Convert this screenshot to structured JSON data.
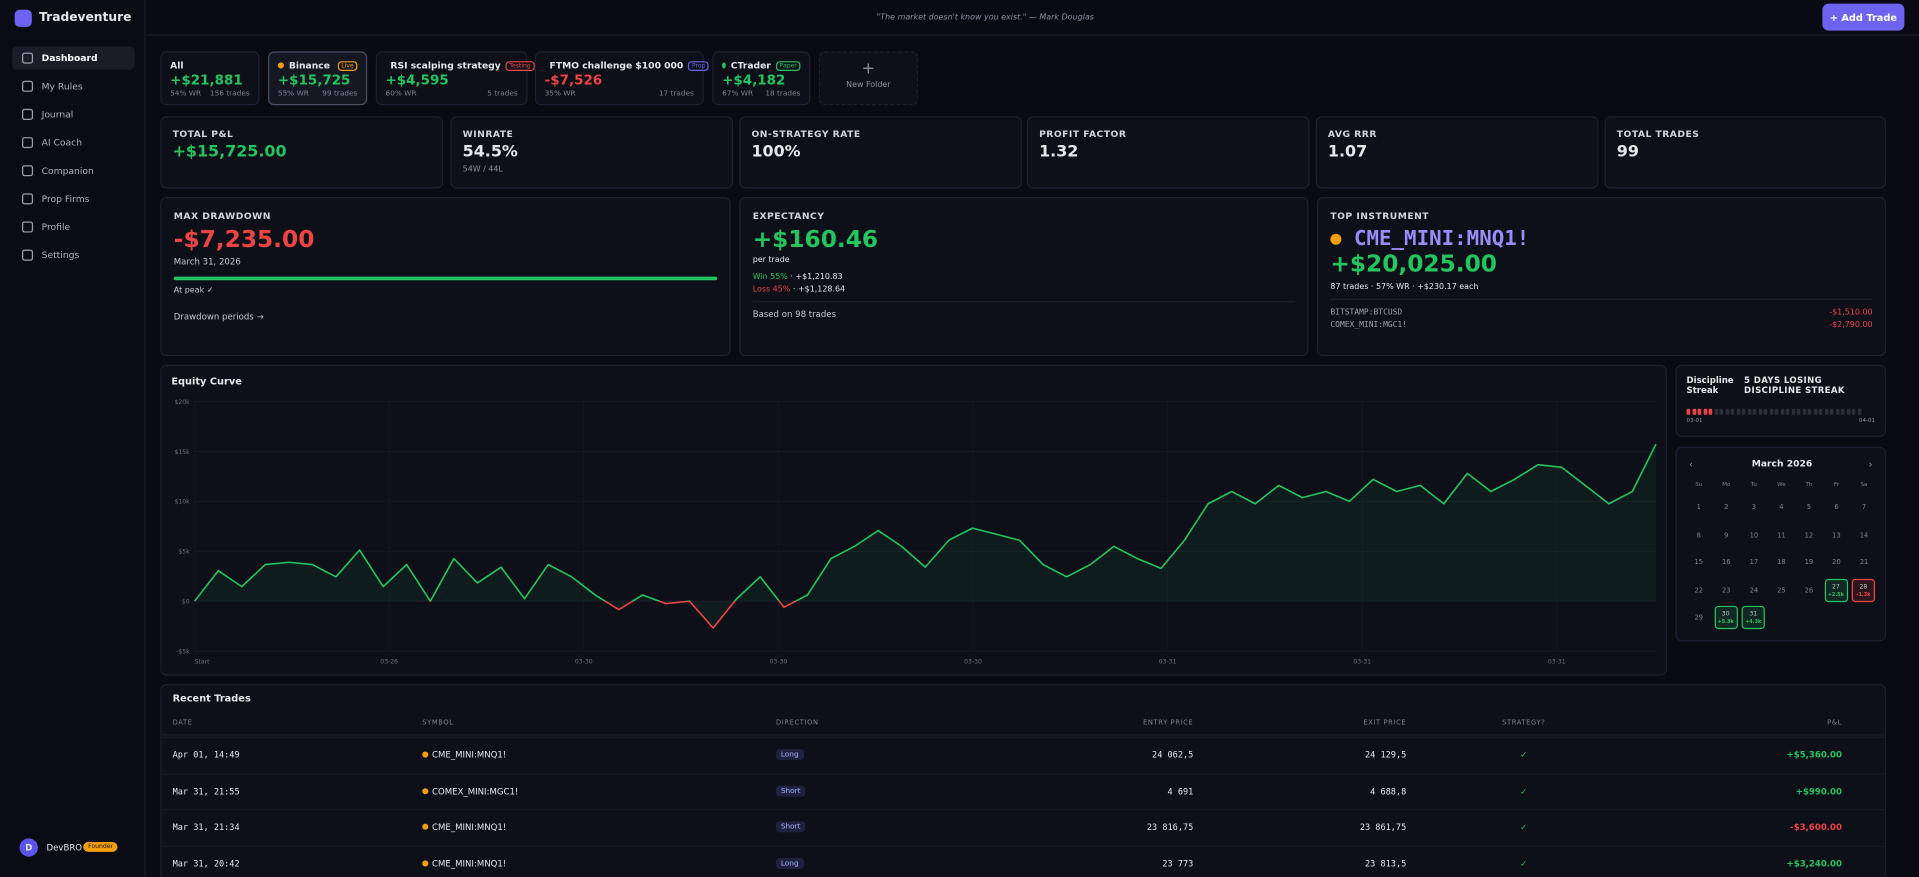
{
  "sidebar": {
    "brand": "Tradeventure",
    "nav": [
      "Dashboard",
      "My Rules",
      "Journal",
      "AI Coach",
      "Companion",
      "Prop Firms",
      "Profile",
      "Settings"
    ],
    "user": {
      "avatar": "D",
      "name": "DevBRO",
      "badge": "Founder"
    }
  },
  "header": {
    "quote": "\"The market doesn't know you exist.\" — Mark Douglas",
    "button": "Add Trade"
  },
  "folders": [
    {
      "name": "All",
      "pnl": "+$21,881",
      "winrate": "54% WR",
      "trades": "156 trades"
    },
    {
      "name": "Binance",
      "badge": "Live",
      "color": "#f59e0b",
      "pnl": "+$15,725",
      "winrate": "55% WR",
      "trades": "99 trades"
    },
    {
      "name": "RSI scalping strategy",
      "badge": "Testing",
      "color": "#ef4444",
      "pnl": "+$4,595",
      "winrate": "60% WR",
      "trades": "5 trades"
    },
    {
      "name": "FTMO challenge $100 000",
      "badge": "Prop",
      "color": "#6366f1",
      "pnl": "-$7,526",
      "winrate": "35% WR",
      "trades": "17 trades"
    },
    {
      "name": "CTrader",
      "badge": "Paper",
      "color": "#22c55e",
      "pnl": "+$4,182",
      "winrate": "67% WR",
      "trades": "18 trades"
    }
  ],
  "new_folder": "New Folder",
  "stats": [
    {
      "label": "TOTAL P&L",
      "value": "+$15,725.00"
    },
    {
      "label": "WINRATE",
      "value": "54.5%",
      "sub": "54W / 44L"
    },
    {
      "label": "ON-STRATEGY RATE",
      "value": "100%"
    },
    {
      "label": "PROFIT FACTOR",
      "value": "1.32"
    },
    {
      "label": "AVG RRR",
      "value": "1.07"
    },
    {
      "label": "TOTAL TRADES",
      "value": "99"
    }
  ],
  "max_drawdown": {
    "label": "MAX DRAWDOWN",
    "value": "-$7,235.00",
    "date": "March 31, 2026",
    "status": "At peak ✓",
    "link": "Drawdown periods →"
  },
  "expectancy": {
    "label": "EXPECTANCY",
    "value": "+$160.46",
    "unit": "per trade",
    "win": "Win 55%",
    "win_amount": "+$1,210.83",
    "loss": "Loss 45%",
    "loss_amount": "+$1,128.64",
    "note": "Based on 98 trades"
  },
  "top_instrument": {
    "label": "TOP INSTRUMENT",
    "symbol": "CME_MINI:MNQ1!",
    "value": "+$20,025.00",
    "trades": "87 trades",
    "winrate": "57% WR",
    "each": "+$230.17 each",
    "others": [
      {
        "symbol": "BITSTAMP:BTCUSD",
        "value": "-$1,510.00"
      },
      {
        "symbol": "COMEX_MINI:MGC1!",
        "value": "-$2,790.00"
      }
    ]
  },
  "equity_curve": {
    "type": "line",
    "title": "Equity Curve",
    "color": "#22c55e",
    "negative_color": "#ef4444",
    "ylim": [
      -5000,
      20000
    ],
    "yticks": [
      {
        "value": 20000,
        "label": "$20k"
      },
      {
        "value": 15000,
        "label": "$15k"
      },
      {
        "value": 10000,
        "label": "$10k"
      },
      {
        "value": 5000,
        "label": "$5k"
      },
      {
        "value": 0,
        "label": "$0"
      },
      {
        "value": -5000,
        "label": "-$5k"
      }
    ],
    "x_labels": [
      "Start",
      "03-26",
      "03-30",
      "03-30",
      "03-30",
      "03-31",
      "03-31",
      "03-31"
    ],
    "values": [
      0,
      3050,
      1460,
      3660,
      3900,
      3660,
      2440,
      5120,
      1460,
      3660,
      0,
      4270,
      1830,
      3410,
      240,
      3660,
      2440,
      610,
      -850,
      610,
      -240,
      0,
      -2680,
      240,
      2440,
      -610,
      610,
      4270,
      5490,
      7070,
      5490,
      3410,
      6100,
      7320,
      6710,
      6100,
      3660,
      2440,
      3660,
      5490,
      4270,
      3290,
      6100,
      9760,
      10980,
      9760,
      11590,
      10370,
      10980,
      10000,
      12200,
      10980,
      11590,
      9760,
      12800,
      10980,
      12200,
      13660,
      13410,
      11590,
      9760,
      10980,
      15725
    ]
  },
  "discipline": {
    "title": "Discipline Streak",
    "status": "5 DAYS LOSING DISCIPLINE STREAK",
    "start": "03-01",
    "end": "04-01"
  },
  "calendar": {
    "month": "March 2026",
    "weekdays": [
      "Su",
      "Mo",
      "Tu",
      "We",
      "Th",
      "Fr",
      "Sa"
    ],
    "days": [
      1,
      2,
      3,
      4,
      5,
      6,
      7,
      8,
      9,
      10,
      11,
      12,
      13,
      14,
      15,
      16,
      17,
      18,
      19,
      20,
      21,
      22,
      23,
      24,
      25,
      26,
      27,
      28,
      29,
      30,
      31
    ],
    "results": [
      {
        "day": 27,
        "pnl": "+2.5k"
      },
      {
        "day": 28,
        "pnl": "-1.3k"
      },
      {
        "day": 30,
        "pnl": "+5.3k"
      },
      {
        "day": 31,
        "pnl": "+4.3k"
      }
    ]
  },
  "recent_trades": {
    "title": "Recent Trades",
    "columns": [
      "DATE",
      "SYMBOL",
      "DIRECTION",
      "ENTRY PRICE",
      "EXIT PRICE",
      "STRATEGY?",
      "P&L"
    ],
    "rows": [
      [
        "Apr 01, 14:49",
        "CME_MINI:MNQ1!",
        "Long",
        "24 062,5",
        "24 129,5",
        "✓",
        "+$5,360.00"
      ],
      [
        "Mar 31, 21:55",
        "COMEX_MINI:MGC1!",
        "Short",
        "4 691",
        "4 688,8",
        "✓",
        "+$990.00"
      ],
      [
        "Mar 31, 21:34",
        "CME_MINI:MNQ1!",
        "Short",
        "23 816,75",
        "23 861,75",
        "✓",
        "-$3,600.00"
      ],
      [
        "Mar 31, 20:42",
        "CME_MINI:MNQ1!",
        "Long",
        "23 773",
        "23 813,5",
        "✓",
        "+$3,240.00"
      ]
    ]
  }
}
